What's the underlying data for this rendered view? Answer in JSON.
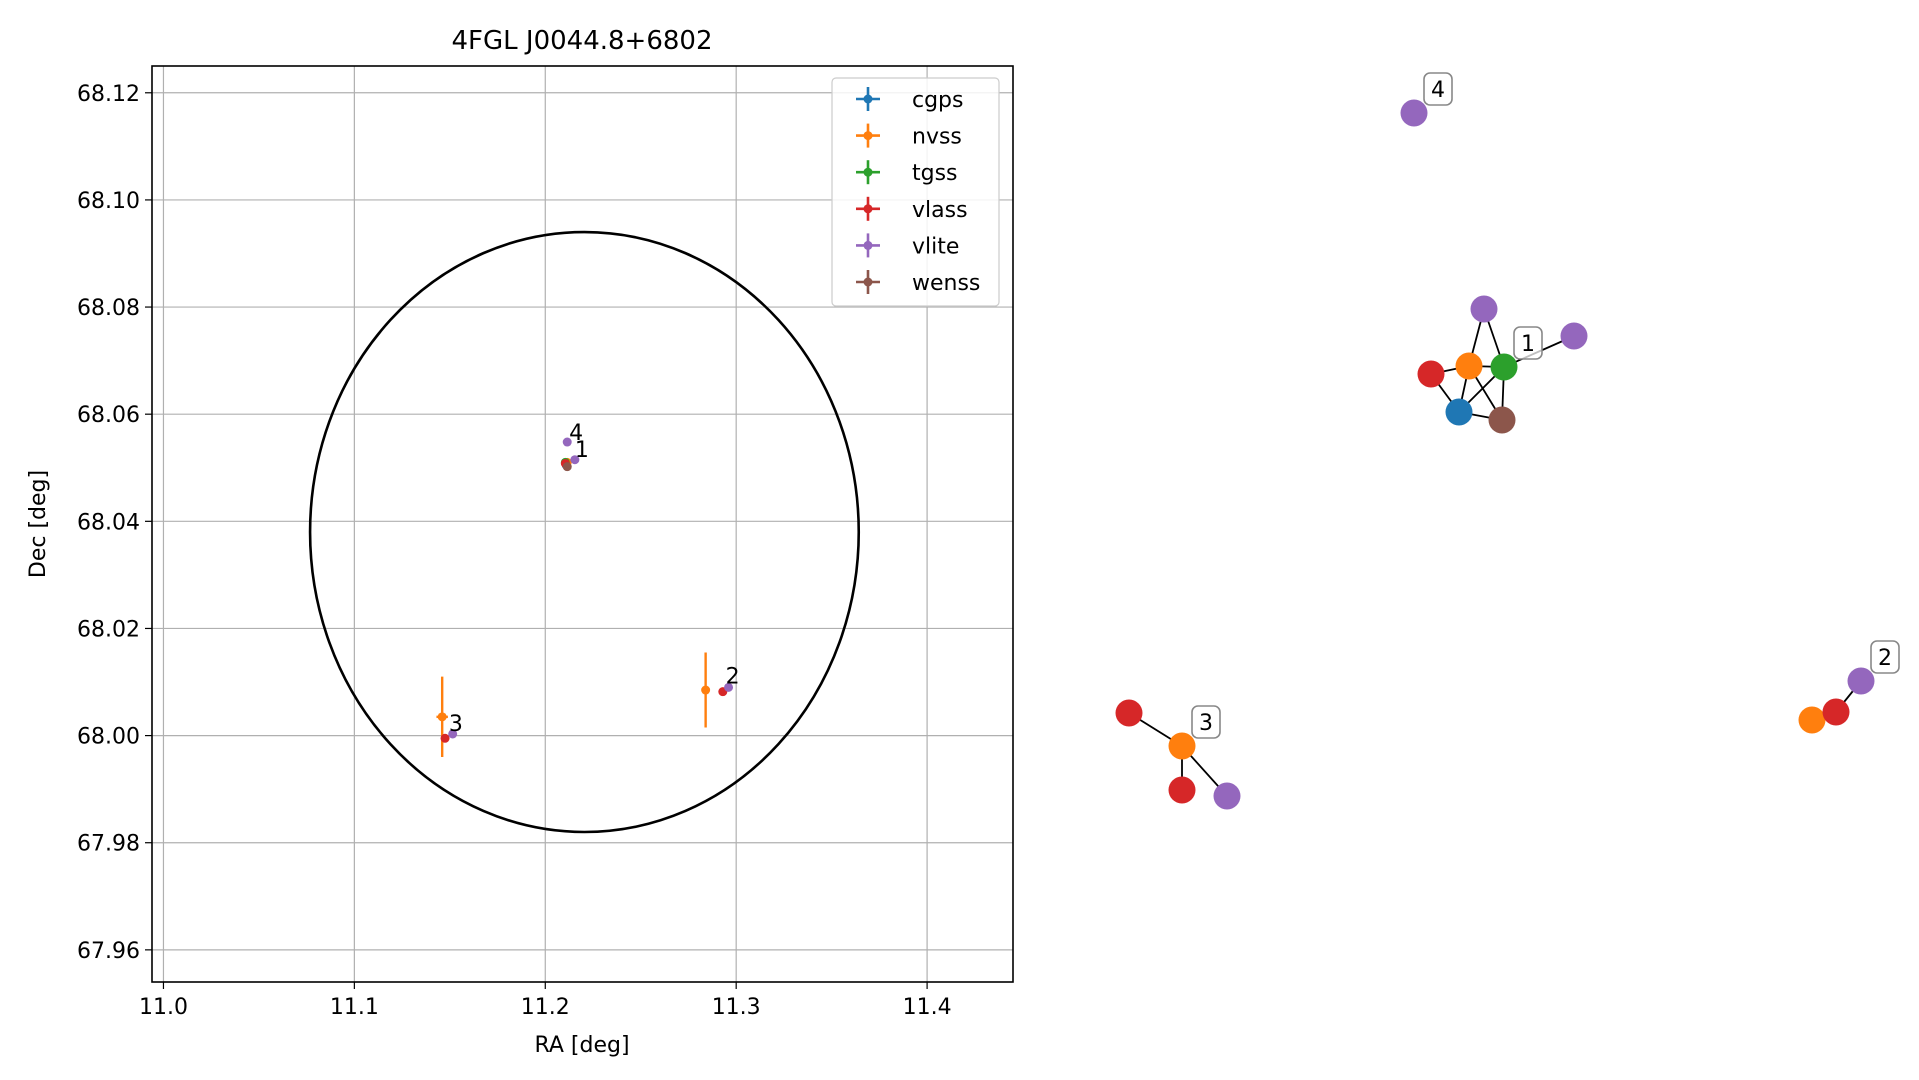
{
  "chart_data": [
    {
      "type": "scatter",
      "title": "4FGL J0044.8+6802",
      "xlabel": "RA [deg]",
      "ylabel": "Dec [deg]",
      "xlim": [
        10.994,
        11.445
      ],
      "ylim": [
        67.954,
        68.125
      ],
      "xticks": [
        11.0,
        11.1,
        11.2,
        11.3,
        11.4
      ],
      "yticks": [
        67.96,
        67.98,
        68.0,
        68.02,
        68.04,
        68.06,
        68.08,
        68.1,
        68.12
      ],
      "xtick_labels": [
        "11.0",
        "11.1",
        "11.2",
        "11.3",
        "11.4"
      ],
      "ytick_labels": [
        "67.96",
        "67.98",
        "68.00",
        "68.02",
        "68.04",
        "68.06",
        "68.08",
        "68.10",
        "68.12"
      ],
      "grid": true,
      "legend_position": "top-right",
      "ellipse": {
        "ra": 11.2205,
        "dec": 68.038,
        "semi_ra": 0.1437,
        "semi_dec": 0.056
      },
      "series": [
        {
          "name": "cgps",
          "color": "#1f77b4",
          "points": [
            {
              "x": 11.211,
              "y": 68.0505
            }
          ]
        },
        {
          "name": "nvss",
          "color": "#ff7f0e",
          "points": [
            {
              "x": 11.2115,
              "y": 68.051
            },
            {
              "x": 11.284,
              "y": 68.0085,
              "yerr": 0.007
            },
            {
              "x": 11.146,
              "y": 68.0035,
              "yerr": 0.0075,
              "xerr": 0.003
            }
          ]
        },
        {
          "name": "tgss",
          "color": "#2ca02c",
          "points": [
            {
              "x": 11.2105,
              "y": 68.051
            }
          ]
        },
        {
          "name": "vlass",
          "color": "#d62728",
          "points": [
            {
              "x": 11.2105,
              "y": 68.0508
            },
            {
              "x": 11.293,
              "y": 68.0082
            },
            {
              "x": 11.1475,
              "y": 67.9995
            }
          ]
        },
        {
          "name": "vlite",
          "color": "#9467bd",
          "points": [
            {
              "x": 11.2155,
              "y": 68.0515
            },
            {
              "x": 11.2115,
              "y": 68.0548
            },
            {
              "x": 11.296,
              "y": 68.009
            },
            {
              "x": 11.1515,
              "y": 68.0003
            }
          ]
        },
        {
          "name": "wenss",
          "color": "#8c564b",
          "points": [
            {
              "x": 11.2115,
              "y": 68.0502
            }
          ]
        }
      ],
      "annotations": [
        {
          "text": "4",
          "x": 11.2125,
          "y": 68.0565
        },
        {
          "text": "1",
          "x": 11.2155,
          "y": 68.0533
        },
        {
          "text": "2",
          "x": 11.2945,
          "y": 68.011
        },
        {
          "text": "3",
          "x": 11.1495,
          "y": 68.0022
        }
      ]
    },
    {
      "type": "network",
      "labels": [
        "1",
        "2",
        "3",
        "4"
      ],
      "nodes": [
        {
          "id": "g1_vlite_top",
          "survey": "vlite",
          "color": "#9467bd"
        },
        {
          "id": "g1_vlite_right",
          "survey": "vlite",
          "color": "#9467bd"
        },
        {
          "id": "g1_vlass",
          "survey": "vlass",
          "color": "#d62728"
        },
        {
          "id": "g1_nvss",
          "survey": "nvss",
          "color": "#ff7f0e"
        },
        {
          "id": "g1_tgss",
          "survey": "tgss",
          "color": "#2ca02c",
          "label": "1"
        },
        {
          "id": "g1_cgps",
          "survey": "cgps",
          "color": "#1f77b4"
        },
        {
          "id": "g1_wenss",
          "survey": "wenss",
          "color": "#8c564b"
        },
        {
          "id": "g4_vlite",
          "survey": "vlite",
          "color": "#9467bd",
          "label": "4"
        },
        {
          "id": "g3_vlass_a",
          "survey": "vlass",
          "color": "#d62728"
        },
        {
          "id": "g3_nvss",
          "survey": "nvss",
          "color": "#ff7f0e",
          "label": "3"
        },
        {
          "id": "g3_vlass_b",
          "survey": "vlass",
          "color": "#d62728"
        },
        {
          "id": "g3_vlite",
          "survey": "vlite",
          "color": "#9467bd"
        },
        {
          "id": "g2_nvss",
          "survey": "nvss",
          "color": "#ff7f0e"
        },
        {
          "id": "g2_vlass",
          "survey": "vlass",
          "color": "#d62728"
        },
        {
          "id": "g2_vlite",
          "survey": "vlite",
          "color": "#9467bd",
          "label": "2"
        }
      ],
      "edges": [
        [
          "g1_vlite_top",
          "g1_nvss"
        ],
        [
          "g1_vlite_top",
          "g1_tgss"
        ],
        [
          "g1_vlass",
          "g1_nvss"
        ],
        [
          "g1_vlass",
          "g1_cgps"
        ],
        [
          "g1_nvss",
          "g1_tgss"
        ],
        [
          "g1_nvss",
          "g1_cgps"
        ],
        [
          "g1_nvss",
          "g1_wenss"
        ],
        [
          "g1_tgss",
          "g1_cgps"
        ],
        [
          "g1_tgss",
          "g1_wenss"
        ],
        [
          "g1_tgss",
          "g1_vlite_right"
        ],
        [
          "g1_cgps",
          "g1_wenss"
        ],
        [
          "g3_vlass_a",
          "g3_nvss"
        ],
        [
          "g3_nvss",
          "g3_vlass_b"
        ],
        [
          "g3_nvss",
          "g3_vlite"
        ],
        [
          "g2_nvss",
          "g2_vlass"
        ],
        [
          "g2_vlass",
          "g2_vlite"
        ]
      ]
    }
  ]
}
